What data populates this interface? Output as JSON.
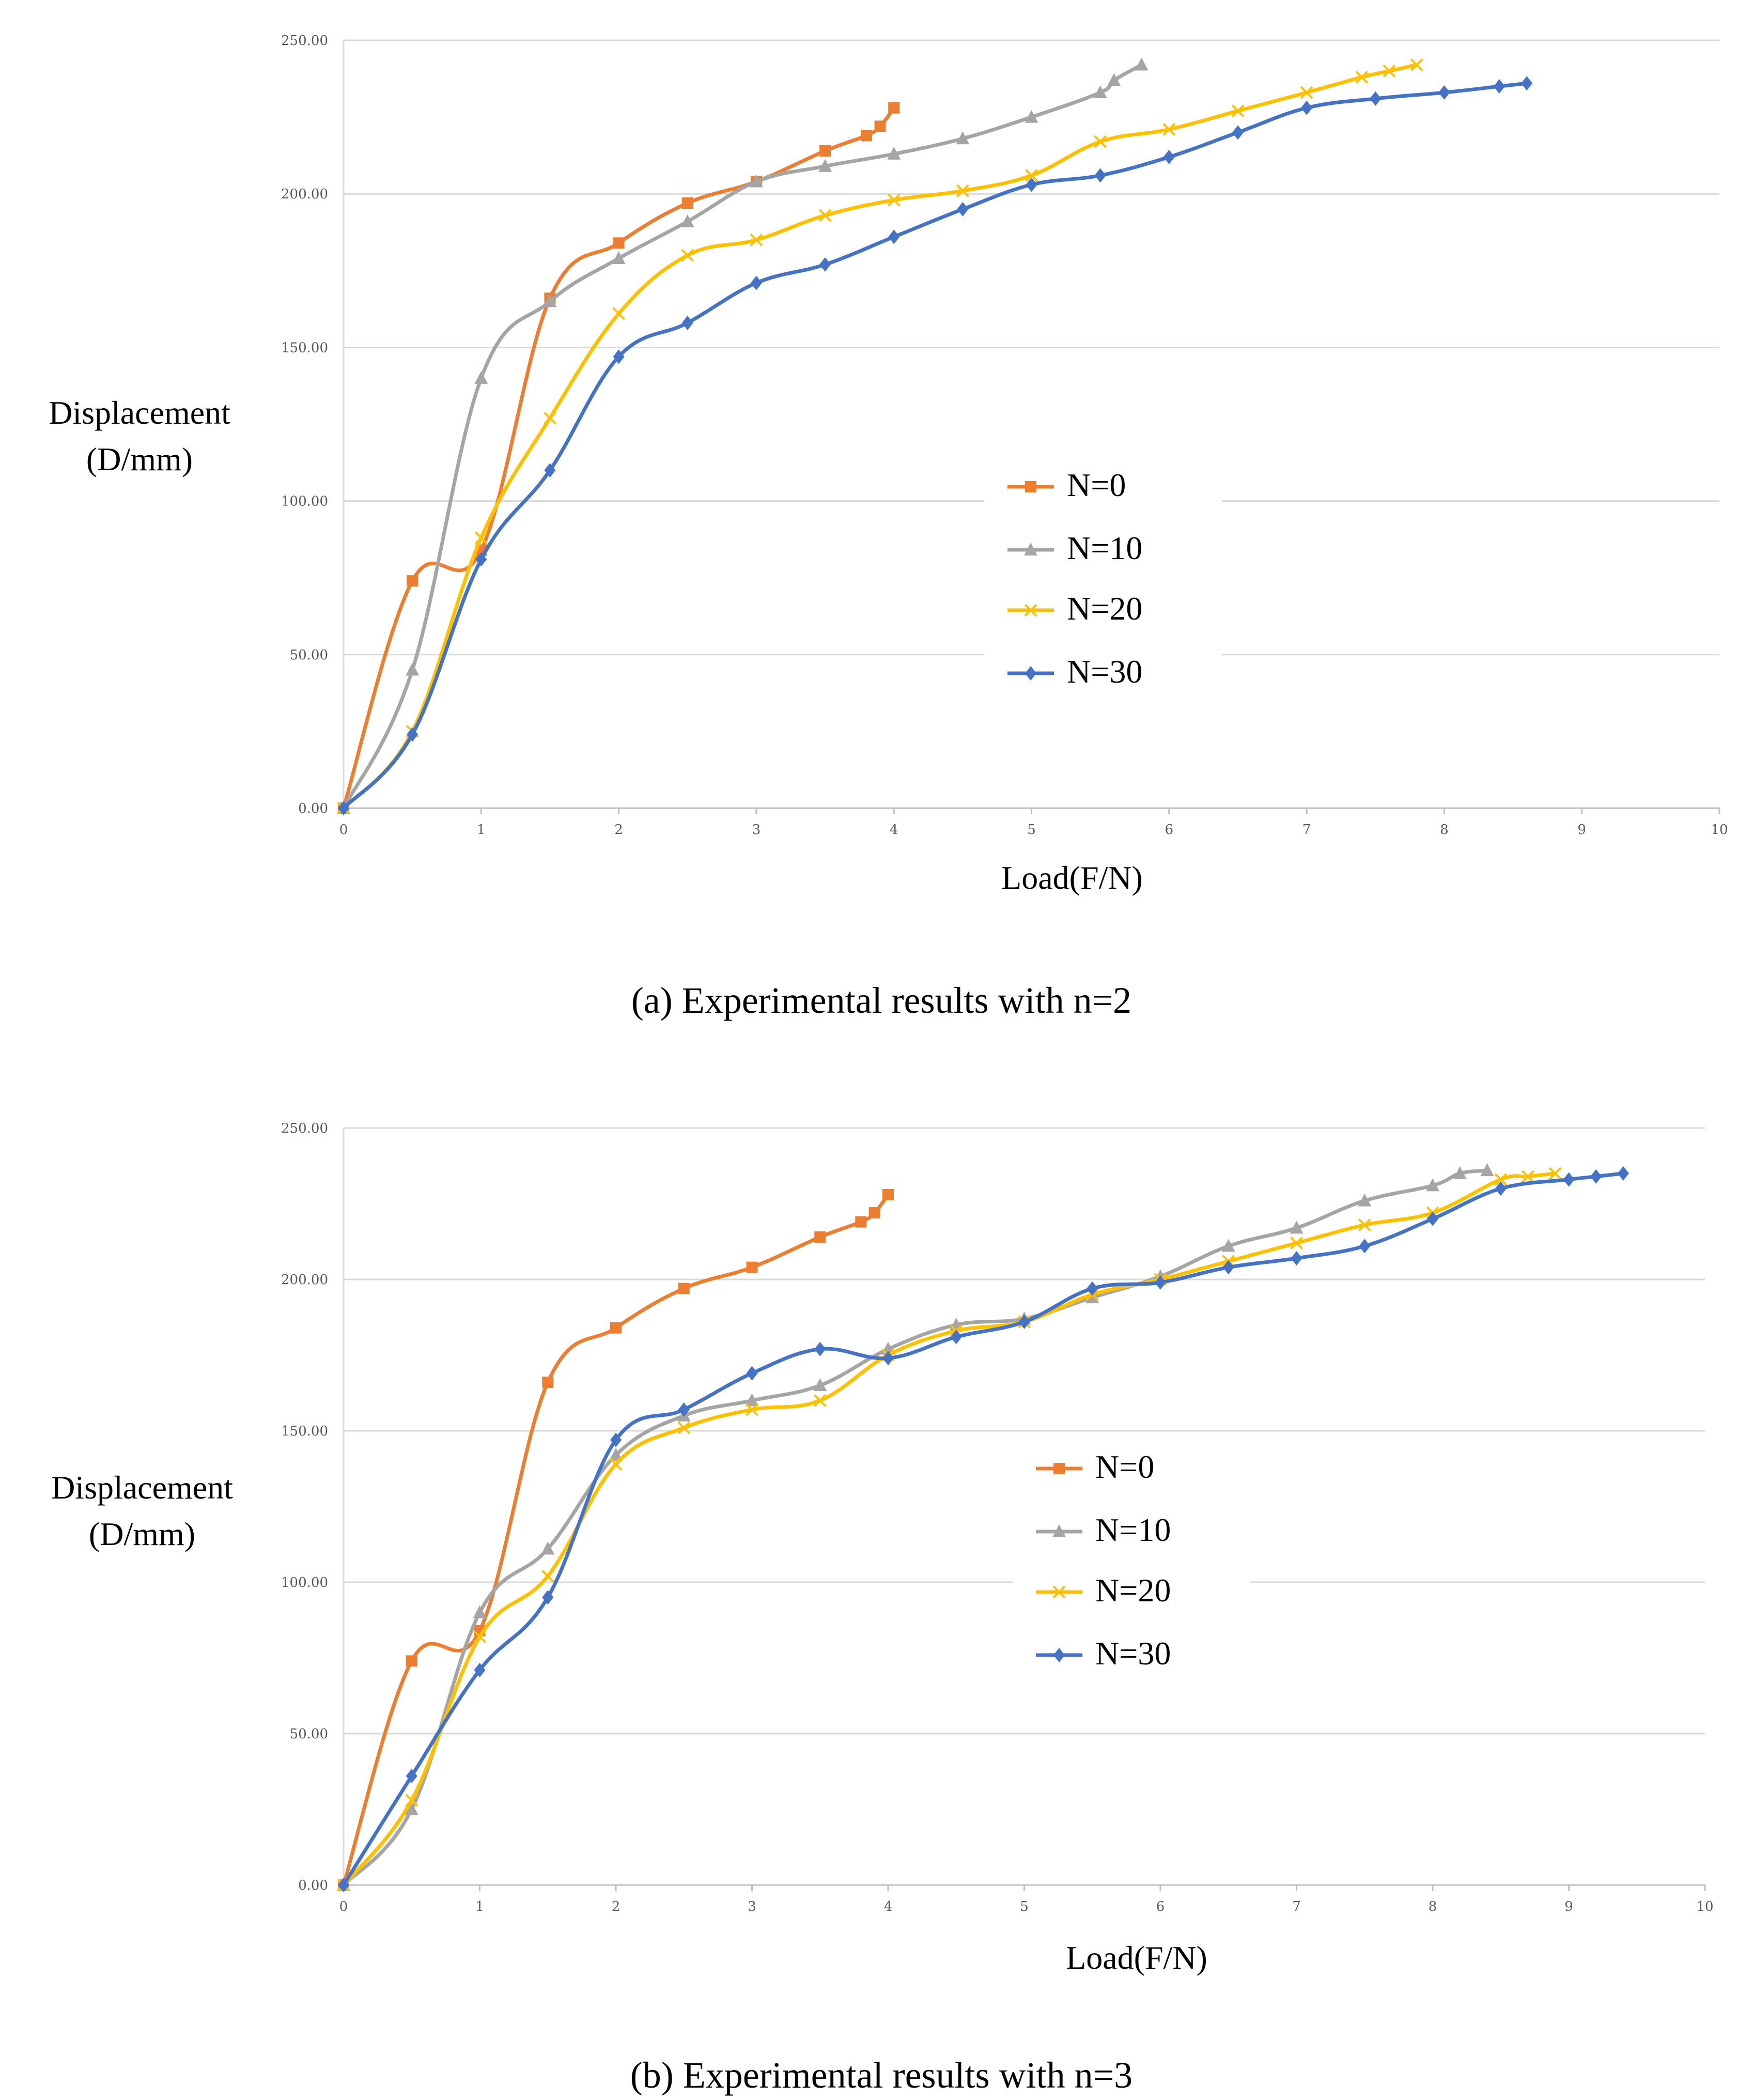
{
  "chart_data": [
    {
      "type": "line",
      "caption": "(a) Experimental results with n=2",
      "xlabel": "Load(F/N)",
      "ylabel": [
        "Displacement",
        "(D/mm)"
      ],
      "xlim": [
        0,
        10
      ],
      "ylim": [
        0,
        250
      ],
      "xticks": [
        "0",
        "1",
        "2",
        "3",
        "4",
        "5",
        "6",
        "7",
        "8",
        "9",
        "10"
      ],
      "yticks": [
        "0.00",
        "50.00",
        "100.00",
        "150.00",
        "200.00",
        "250.00"
      ],
      "grid": "horizontal",
      "legend_position": "center-right",
      "series": [
        {
          "name": "N=0",
          "color": "#ED7D31",
          "marker": "square",
          "x": [
            0,
            0.5,
            1,
            1.5,
            2,
            2.5,
            3,
            3.5,
            3.8,
            3.9,
            4
          ],
          "y": [
            0,
            74,
            84,
            166,
            184,
            197,
            204,
            214,
            219,
            222,
            228
          ]
        },
        {
          "name": "N=10",
          "color": "#A5A5A5",
          "marker": "triangle",
          "x": [
            0,
            0.5,
            1,
            1.5,
            2,
            2.5,
            3,
            3.5,
            4,
            4.5,
            5,
            5.5,
            5.6,
            5.8
          ],
          "y": [
            0,
            45,
            140,
            165,
            179,
            191,
            204,
            209,
            213,
            218,
            225,
            233,
            237,
            242
          ]
        },
        {
          "name": "N=20",
          "color": "#FFC000",
          "marker": "x",
          "x": [
            0,
            0.5,
            1,
            1.5,
            2,
            2.5,
            3,
            3.5,
            4,
            4.5,
            5,
            5.5,
            6,
            6.5,
            7,
            7.4,
            7.6,
            7.8
          ],
          "y": [
            0,
            25,
            88,
            127,
            161,
            180,
            185,
            193,
            198,
            201,
            206,
            217,
            221,
            227,
            233,
            238,
            240,
            242
          ]
        },
        {
          "name": "N=30",
          "color": "#4472C4",
          "marker": "diamond",
          "x": [
            0,
            0.5,
            1,
            1.5,
            2,
            2.5,
            3,
            3.5,
            4,
            4.5,
            5,
            5.5,
            6,
            6.5,
            7,
            7.5,
            8,
            8.4,
            8.6
          ],
          "y": [
            0,
            24,
            81,
            110,
            147,
            158,
            171,
            177,
            186,
            195,
            203,
            206,
            212,
            220,
            228,
            231,
            233,
            235,
            236
          ]
        }
      ]
    },
    {
      "type": "line",
      "caption": "(b) Experimental results with n=3",
      "xlabel": "Load(F/N)",
      "ylabel": [
        "Displacement",
        "(D/mm)"
      ],
      "xlim": [
        0,
        10
      ],
      "ylim": [
        0,
        250
      ],
      "xticks": [
        "0",
        "1",
        "2",
        "3",
        "4",
        "5",
        "6",
        "7",
        "8",
        "9",
        "10"
      ],
      "yticks": [
        "0.00",
        "50.00",
        "100.00",
        "150.00",
        "200.00",
        "250.00"
      ],
      "grid": "horizontal",
      "legend_position": "center",
      "series": [
        {
          "name": "N=0",
          "color": "#ED7D31",
          "marker": "square",
          "x": [
            0,
            0.5,
            1,
            1.5,
            2,
            2.5,
            3,
            3.5,
            3.8,
            3.9,
            4
          ],
          "y": [
            0,
            74,
            84,
            166,
            184,
            197,
            204,
            214,
            219,
            222,
            228
          ]
        },
        {
          "name": "N=10",
          "color": "#A5A5A5",
          "marker": "triangle",
          "x": [
            0,
            0.5,
            1,
            1.5,
            2,
            2.5,
            3,
            3.5,
            4,
            4.5,
            5,
            5.5,
            6,
            6.5,
            7,
            7.5,
            8,
            8.2,
            8.4
          ],
          "y": [
            0,
            25,
            90,
            111,
            142,
            155,
            160,
            165,
            177,
            185,
            187,
            194,
            201,
            211,
            217,
            226,
            231,
            235,
            236
          ]
        },
        {
          "name": "N=20",
          "color": "#FFC000",
          "marker": "x",
          "x": [
            0,
            0.5,
            1,
            1.5,
            2,
            2.5,
            3,
            3.5,
            4,
            4.5,
            5,
            5.5,
            6,
            6.5,
            7,
            7.5,
            8,
            8.5,
            8.7,
            8.9
          ],
          "y": [
            0,
            28,
            82,
            102,
            139,
            151,
            157,
            160,
            175,
            183,
            186,
            195,
            200,
            206,
            212,
            218,
            222,
            233,
            234,
            235
          ]
        },
        {
          "name": "N=30",
          "color": "#4472C4",
          "marker": "diamond",
          "x": [
            0,
            0.5,
            1,
            1.5,
            2,
            2.5,
            3,
            3.5,
            4,
            4.5,
            5,
            5.5,
            6,
            6.5,
            7,
            7.5,
            8,
            8.5,
            9,
            9.2,
            9.4
          ],
          "y": [
            0,
            36,
            71,
            95,
            147,
            157,
            169,
            177,
            174,
            181,
            186,
            197,
            199,
            204,
            207,
            211,
            220,
            230,
            233,
            234,
            235
          ]
        }
      ]
    }
  ]
}
